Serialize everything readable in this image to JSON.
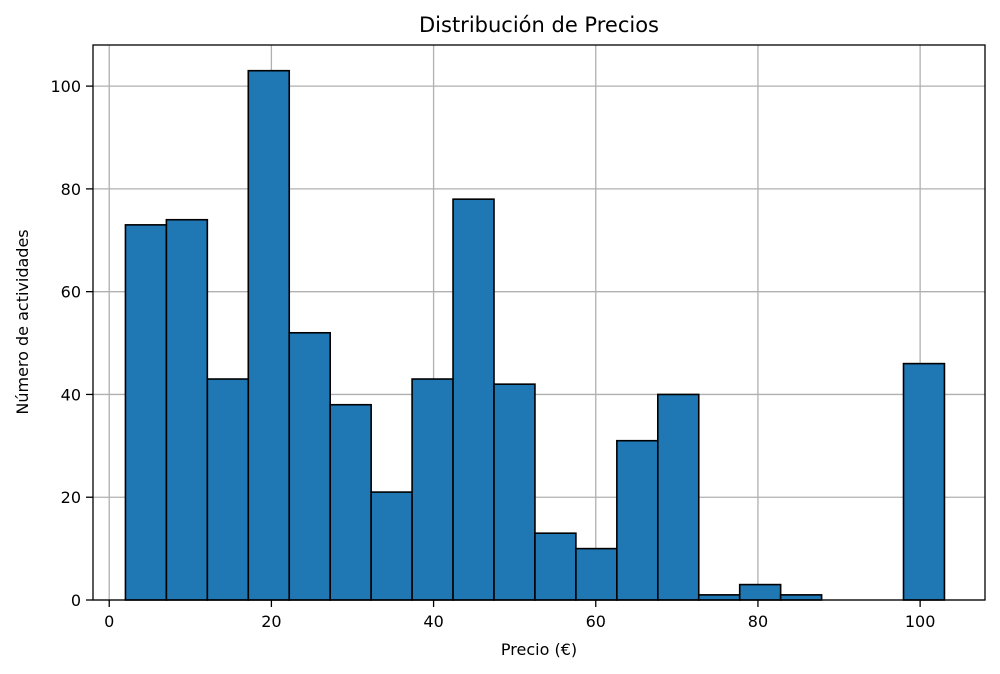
{
  "chart_data": {
    "type": "bar",
    "title": "Distribución de Precios",
    "xlabel": "Precio (€)",
    "ylabel": "Número de actividades",
    "bar_color": "#1f77b4",
    "edge_color": "#000000",
    "grid": true,
    "xlim": [
      -2,
      108
    ],
    "ylim": [
      0,
      108
    ],
    "x_ticks": [
      0,
      20,
      40,
      60,
      80,
      100
    ],
    "y_ticks": [
      0,
      20,
      40,
      60,
      80,
      100
    ],
    "x_tick_labels": [
      "0",
      "20",
      "40",
      "60",
      "80",
      "100"
    ],
    "y_tick_labels": [
      "0",
      "20",
      "40",
      "60",
      "80",
      "100"
    ],
    "bin_edges": [
      2.0,
      7.05,
      12.1,
      17.15,
      22.2,
      27.25,
      32.3,
      37.35,
      42.4,
      47.45,
      52.5,
      57.55,
      62.6,
      67.65,
      72.7,
      77.75,
      82.8,
      87.85,
      92.9,
      97.95,
      103.0
    ],
    "values": [
      73,
      74,
      43,
      103,
      52,
      38,
      21,
      43,
      78,
      42,
      13,
      10,
      31,
      40,
      1,
      3,
      1,
      0,
      0,
      46
    ]
  }
}
